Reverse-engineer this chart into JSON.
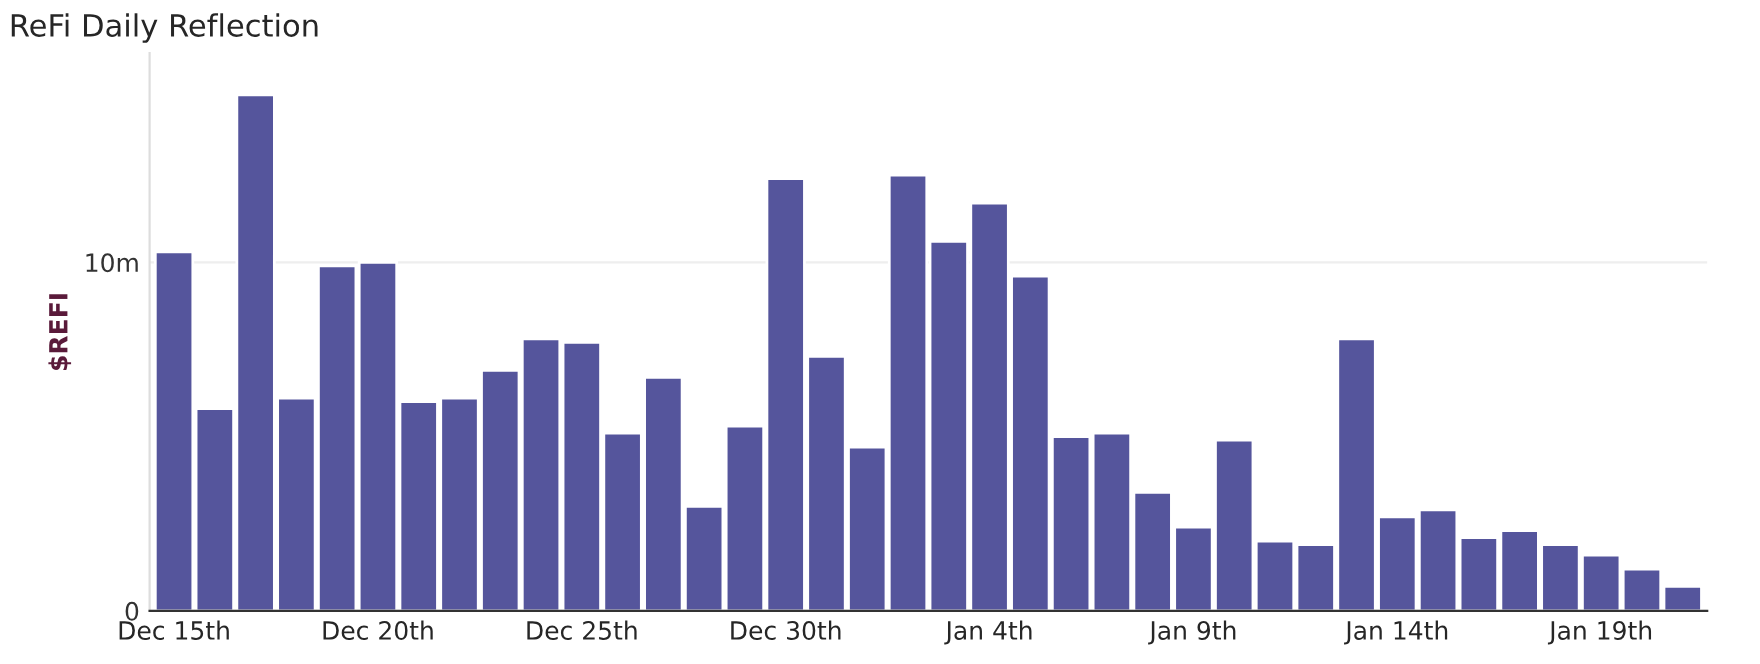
{
  "chart_data": {
    "type": "bar",
    "title": "ReFi Daily Reflection",
    "ylabel": "$REFI",
    "categories": [
      "Dec 15th",
      null,
      null,
      null,
      null,
      "Dec 20th",
      null,
      null,
      null,
      null,
      "Dec 25th",
      null,
      null,
      null,
      null,
      "Dec 30th",
      null,
      null,
      null,
      null,
      "Jan 4th",
      null,
      null,
      null,
      null,
      "Jan 9th",
      null,
      null,
      null,
      null,
      "Jan 14th",
      null,
      null,
      null,
      null,
      "Jan 19th",
      null,
      null
    ],
    "series": [
      {
        "color": "#55559c",
        "values": [
          10.3,
          5.8,
          14.8,
          6.1,
          9.9,
          10.0,
          6.0,
          6.1,
          6.9,
          7.8,
          7.7,
          5.1,
          6.7,
          3.0,
          5.3,
          12.4,
          7.3,
          4.7,
          12.5,
          10.6,
          11.7,
          9.6,
          5.0,
          5.1,
          3.4,
          2.4,
          4.9,
          2.0,
          1.9,
          7.8,
          2.7,
          2.9,
          2.1,
          2.3,
          1.9,
          1.6,
          1.2,
          0.7
        ]
      }
    ],
    "ylim": [
      0,
      16
    ],
    "yticks": [
      0,
      {
        "value": 10,
        "label": "10m"
      }
    ],
    "grid": "y",
    "legend": false
  }
}
